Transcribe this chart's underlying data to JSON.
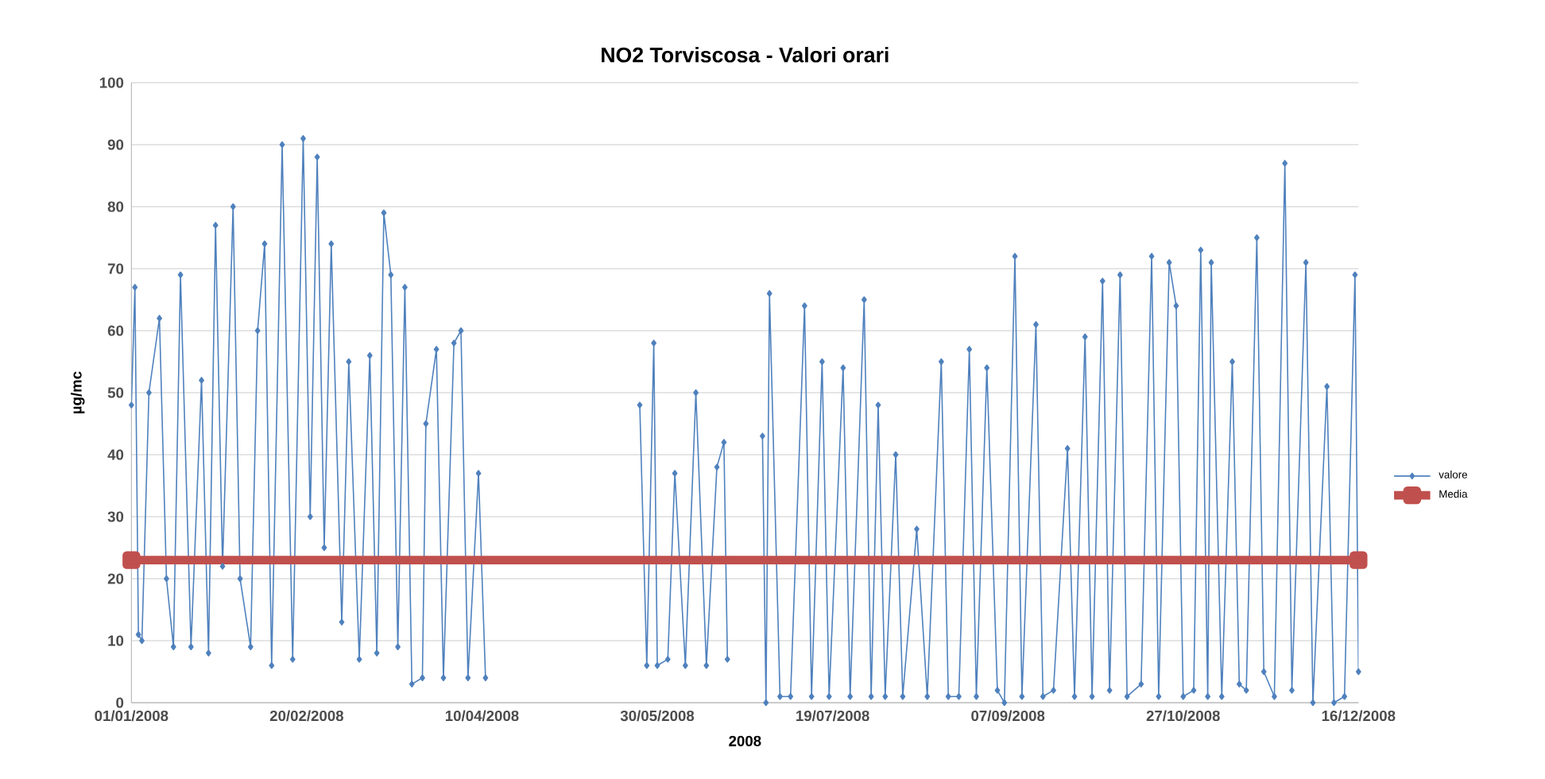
{
  "chart_data": {
    "type": "line",
    "title": "NO2 Torviscosa - Valori orari",
    "xlabel": "2008",
    "ylabel": "µg/mc",
    "xlim": [
      "2008-01-01",
      "2008-12-16"
    ],
    "xticks": [
      {
        "value": "2008-01-01",
        "label": "01/01/2008"
      },
      {
        "value": "2008-02-20",
        "label": "20/02/2008"
      },
      {
        "value": "2008-04-10",
        "label": "10/04/2008"
      },
      {
        "value": "2008-05-30",
        "label": "30/05/2008"
      },
      {
        "value": "2008-07-19",
        "label": "19/07/2008"
      },
      {
        "value": "2008-09-07",
        "label": "07/09/2008"
      },
      {
        "value": "2008-10-27",
        "label": "27/10/2008"
      },
      {
        "value": "2008-12-16",
        "label": "16/12/2008"
      }
    ],
    "ylim": [
      0,
      100
    ],
    "yticks": [
      0,
      10,
      20,
      30,
      40,
      50,
      60,
      70,
      80,
      90,
      100
    ],
    "grid": "y",
    "legend": "right",
    "series": [
      {
        "name": "valore",
        "color": "#4f81bd",
        "marker": "diamond",
        "x": [
          "2008-01-01",
          "2008-01-02",
          "2008-01-03",
          "2008-01-04",
          "2008-01-06",
          "2008-01-09",
          "2008-01-11",
          "2008-01-13",
          "2008-01-15",
          "2008-01-18",
          "2008-01-21",
          "2008-01-23",
          "2008-01-25",
          "2008-01-27",
          "2008-01-30",
          "2008-02-01",
          "2008-02-04",
          "2008-02-06",
          "2008-02-08",
          "2008-02-10",
          "2008-02-13",
          "2008-02-16",
          "2008-02-19",
          "2008-02-21",
          "2008-02-23",
          "2008-02-25",
          "2008-02-27",
          "2008-03-01",
          "2008-03-03",
          "2008-03-06",
          "2008-03-09",
          "2008-03-11",
          "2008-03-13",
          "2008-03-15",
          "2008-03-17",
          "2008-03-19",
          "2008-03-21",
          "2008-03-24",
          "2008-03-25",
          "2008-03-28",
          "2008-03-30",
          "2008-04-02",
          "2008-04-04",
          "2008-04-06",
          "2008-04-09",
          "2008-04-11",
          "2008-05-03",
          "2008-05-25",
          "2008-05-27",
          "2008-05-29",
          "2008-05-30",
          "2008-06-02",
          "2008-06-04",
          "2008-06-07",
          "2008-06-10",
          "2008-06-13",
          "2008-06-16",
          "2008-06-18",
          "2008-06-19",
          "2008-06-24",
          "2008-06-29",
          "2008-06-30",
          "2008-07-01",
          "2008-07-04",
          "2008-07-07",
          "2008-07-11",
          "2008-07-13",
          "2008-07-16",
          "2008-07-18",
          "2008-07-22",
          "2008-07-24",
          "2008-07-28",
          "2008-07-30",
          "2008-08-01",
          "2008-08-03",
          "2008-08-06",
          "2008-08-08",
          "2008-08-12",
          "2008-08-15",
          "2008-08-19",
          "2008-08-21",
          "2008-08-24",
          "2008-08-27",
          "2008-08-29",
          "2008-09-01",
          "2008-09-04",
          "2008-09-06",
          "2008-09-09",
          "2008-09-11",
          "2008-09-15",
          "2008-09-17",
          "2008-09-20",
          "2008-09-24",
          "2008-09-26",
          "2008-09-29",
          "2008-10-01",
          "2008-10-04",
          "2008-10-06",
          "2008-10-09",
          "2008-10-11",
          "2008-10-15",
          "2008-10-18",
          "2008-10-20",
          "2008-10-23",
          "2008-10-25",
          "2008-10-27",
          "2008-10-30",
          "2008-11-01",
          "2008-11-03",
          "2008-11-04",
          "2008-11-07",
          "2008-11-10",
          "2008-11-12",
          "2008-11-14",
          "2008-11-17",
          "2008-11-19",
          "2008-11-22",
          "2008-11-25",
          "2008-11-27",
          "2008-12-01",
          "2008-12-03",
          "2008-12-07",
          "2008-12-09",
          "2008-12-12",
          "2008-12-15",
          "2008-12-16"
        ],
        "values": [
          48,
          67,
          11,
          10,
          50,
          62,
          20,
          9,
          69,
          9,
          52,
          8,
          77,
          22,
          80,
          20,
          9,
          60,
          74,
          6,
          90,
          7,
          91,
          30,
          88,
          25,
          74,
          13,
          55,
          7,
          56,
          8,
          79,
          69,
          9,
          67,
          3,
          4,
          45,
          57,
          4,
          58,
          60,
          4,
          37,
          4,
          null,
          48,
          6,
          58,
          6,
          7,
          37,
          6,
          50,
          6,
          38,
          42,
          7,
          null,
          43,
          0,
          66,
          1,
          1,
          64,
          1,
          55,
          1,
          54,
          1,
          65,
          1,
          48,
          1,
          40,
          1,
          28,
          1,
          55,
          1,
          1,
          57,
          1,
          54,
          2,
          0,
          72,
          1,
          61,
          1,
          2,
          41,
          1,
          59,
          1,
          68,
          2,
          69,
          1,
          3,
          72,
          1,
          71,
          64,
          1,
          2,
          73,
          1,
          71,
          1,
          55,
          3,
          2,
          75,
          5,
          1,
          87,
          2,
          71,
          0,
          51,
          0,
          1,
          69,
          5
        ]
      },
      {
        "name": "Media",
        "color": "#c0504d",
        "marker": "square",
        "x": [
          "2008-01-01",
          "2008-12-16"
        ],
        "values": [
          23,
          23
        ]
      }
    ]
  }
}
